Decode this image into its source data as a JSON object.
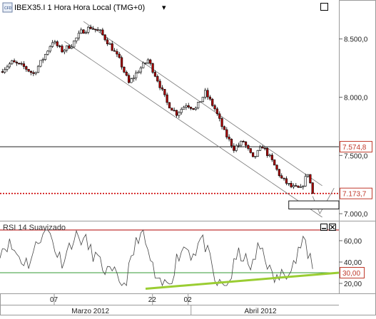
{
  "window": {
    "icon_text": "CFD",
    "title": "IBEX35.I 1 Hora Hora Local (TMG+0)",
    "dropdown": "▾",
    "maximize_icon": "maximize-icon"
  },
  "price_axis": {
    "ticks": [
      {
        "value": 8500,
        "label": "8.500,0"
      },
      {
        "value": 8000,
        "label": "8.000,0"
      },
      {
        "value": 7500,
        "label": "7.500,0"
      },
      {
        "value": 7000,
        "label": "7.000,0"
      }
    ],
    "range": [
      6970,
      8700
    ],
    "badges": [
      {
        "name": "resistance-level-badge",
        "value": 7574.8,
        "label": "7.574,8",
        "color": "#c0392b"
      },
      {
        "name": "current-price-badge",
        "value": 7173.7,
        "label": "7.173,7",
        "color": "#c0392b"
      }
    ],
    "hline_value": 7574.8,
    "current_value": 7173.7
  },
  "indicator": {
    "title": "RSI 14 Suavizado",
    "ticks": [
      {
        "value": 60,
        "label": "60,00"
      },
      {
        "value": 40,
        "label": "40,00"
      },
      {
        "value": 20,
        "label": "20,00"
      }
    ],
    "range": [
      12,
      76
    ],
    "upper_level": 70,
    "lower_level": 30,
    "badge": {
      "value": 30,
      "label": "30,00",
      "color": "#c0392b"
    },
    "buttons": [
      "minimize-icon",
      "close-icon"
    ]
  },
  "time_axis": {
    "day_ticks": [
      {
        "label": "07",
        "pos": 0.16
      },
      {
        "label": "22",
        "pos": 0.45
      },
      {
        "label": "02",
        "pos": 0.555
      }
    ],
    "month_labels": [
      {
        "label": "Marzo 2012",
        "pos": 0.27
      },
      {
        "label": "Abril 2012",
        "pos": 0.78
      }
    ]
  },
  "colors": {
    "up_candle": "#ffffff",
    "down_candle": "#b00000",
    "channel": "#777777",
    "rsi_line": "#444444",
    "trend_line": "#9acd32",
    "level_red": "#b00000",
    "level_green": "#339933",
    "current_price_line": "#cc0000"
  },
  "chart_data": {
    "type": "candlestick",
    "title": "IBEX35.I 1 Hora Hora Local (TMG+0)",
    "xlabel": "",
    "ylabel": "",
    "ylim": [
      6970,
      8700
    ],
    "key_points": [
      {
        "t": 0,
        "close": 8220
      },
      {
        "t": 5,
        "close": 8300
      },
      {
        "t": 10,
        "close": 8260
      },
      {
        "t": 14,
        "close": 8200
      },
      {
        "t": 18,
        "close": 8330
      },
      {
        "t": 22,
        "close": 8480
      },
      {
        "t": 26,
        "close": 8400
      },
      {
        "t": 30,
        "close": 8450
      },
      {
        "t": 34,
        "close": 8560
      },
      {
        "t": 38,
        "close": 8600
      },
      {
        "t": 42,
        "close": 8560
      },
      {
        "t": 46,
        "close": 8450
      },
      {
        "t": 50,
        "close": 8320
      },
      {
        "t": 54,
        "close": 8120
      },
      {
        "t": 58,
        "close": 8230
      },
      {
        "t": 62,
        "close": 8320
      },
      {
        "t": 66,
        "close": 8150
      },
      {
        "t": 70,
        "close": 7950
      },
      {
        "t": 74,
        "close": 7860
      },
      {
        "t": 78,
        "close": 7940
      },
      {
        "t": 82,
        "close": 7900
      },
      {
        "t": 86,
        "close": 8040
      },
      {
        "t": 90,
        "close": 7900
      },
      {
        "t": 94,
        "close": 7700
      },
      {
        "t": 98,
        "close": 7560
      },
      {
        "t": 102,
        "close": 7620
      },
      {
        "t": 106,
        "close": 7470
      },
      {
        "t": 110,
        "close": 7580
      },
      {
        "t": 114,
        "close": 7450
      },
      {
        "t": 118,
        "close": 7300
      },
      {
        "t": 122,
        "close": 7230
      },
      {
        "t": 126,
        "close": 7210
      },
      {
        "t": 129,
        "close": 7350
      },
      {
        "t": 131,
        "close": 7174
      }
    ],
    "channel": {
      "upper": [
        {
          "t": 35,
          "v": 8650
        },
        {
          "t": 135,
          "v": 7240
        }
      ],
      "lower": [
        {
          "t": 27,
          "v": 8480
        },
        {
          "t": 135,
          "v": 6970
        }
      ]
    },
    "projection": [
      {
        "t": 131,
        "v": 7150
      },
      {
        "t": 134,
        "v": 7000
      },
      {
        "t": 140,
        "v": 7220
      }
    ],
    "target_box": {
      "v_top": 7110,
      "v_bottom": 7040,
      "t_start": 121,
      "t_end": 142
    },
    "rsi_trend_line": [
      {
        "t": 61,
        "v": 15
      },
      {
        "t": 142,
        "v": 30
      }
    ]
  }
}
